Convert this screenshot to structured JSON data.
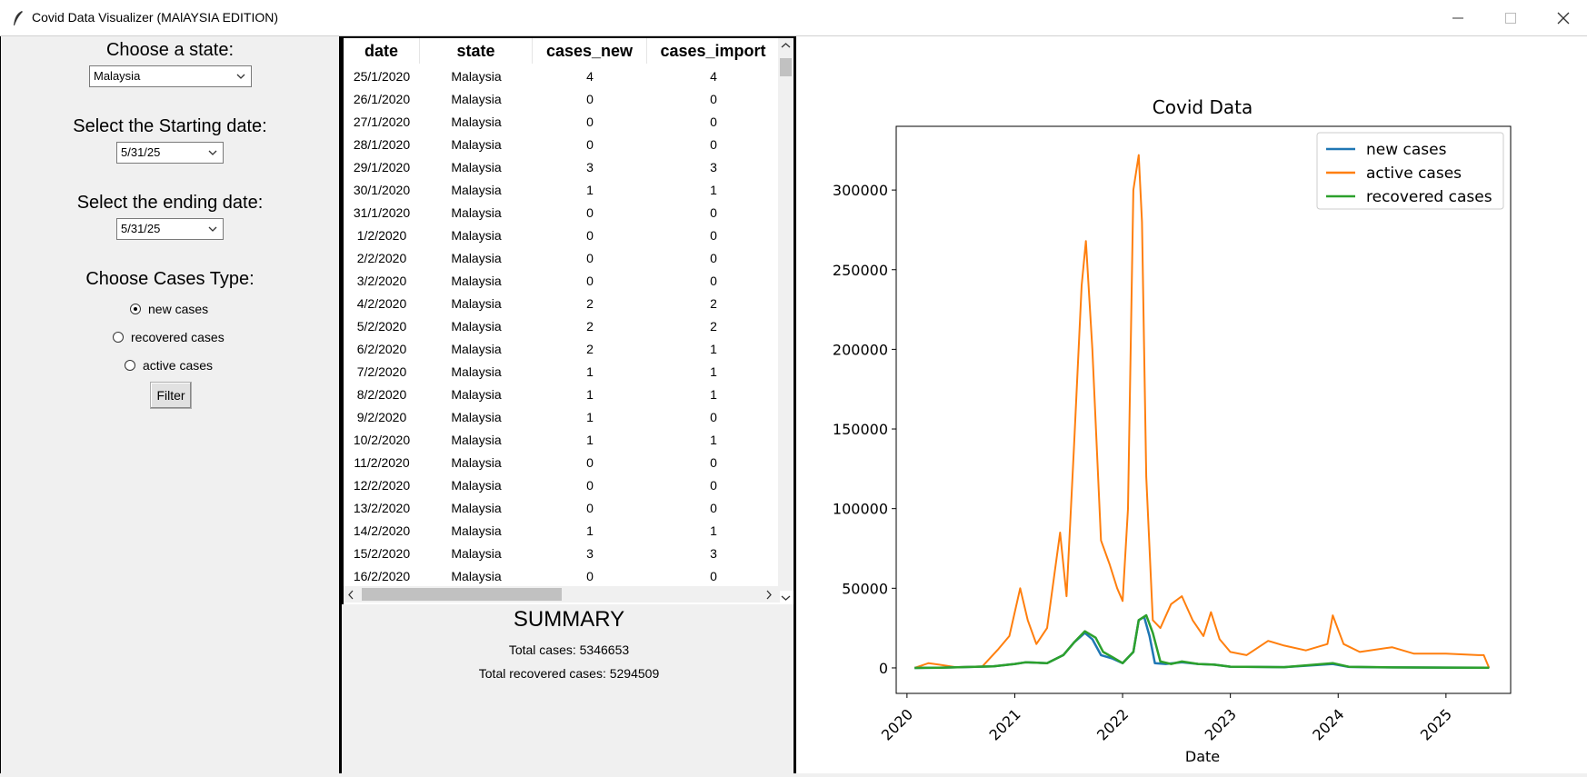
{
  "window": {
    "title": "Covid Data Visualizer (MAlAYSIA EDITION)",
    "app_icon": "feather-icon"
  },
  "controls": {
    "state_label": "Choose a state:",
    "state_value": "Malaysia",
    "start_label": "Select the Starting date:",
    "start_value": "5/31/25",
    "end_label": "Select the ending date:",
    "end_value": "5/31/25",
    "cases_label": "Choose Cases Type:",
    "radios": [
      {
        "label": "new cases",
        "selected": true
      },
      {
        "label": "recovered cases",
        "selected": false
      },
      {
        "label": "active cases",
        "selected": false
      }
    ],
    "filter_label": "Filter"
  },
  "table": {
    "columns": [
      "date",
      "state",
      "cases_new",
      "cases_import"
    ],
    "rows": [
      [
        "25/1/2020",
        "Malaysia",
        "4",
        "4"
      ],
      [
        "26/1/2020",
        "Malaysia",
        "0",
        "0"
      ],
      [
        "27/1/2020",
        "Malaysia",
        "0",
        "0"
      ],
      [
        "28/1/2020",
        "Malaysia",
        "0",
        "0"
      ],
      [
        "29/1/2020",
        "Malaysia",
        "3",
        "3"
      ],
      [
        "30/1/2020",
        "Malaysia",
        "1",
        "1"
      ],
      [
        "31/1/2020",
        "Malaysia",
        "0",
        "0"
      ],
      [
        "1/2/2020",
        "Malaysia",
        "0",
        "0"
      ],
      [
        "2/2/2020",
        "Malaysia",
        "0",
        "0"
      ],
      [
        "3/2/2020",
        "Malaysia",
        "0",
        "0"
      ],
      [
        "4/2/2020",
        "Malaysia",
        "2",
        "2"
      ],
      [
        "5/2/2020",
        "Malaysia",
        "2",
        "2"
      ],
      [
        "6/2/2020",
        "Malaysia",
        "2",
        "1"
      ],
      [
        "7/2/2020",
        "Malaysia",
        "1",
        "1"
      ],
      [
        "8/2/2020",
        "Malaysia",
        "1",
        "1"
      ],
      [
        "9/2/2020",
        "Malaysia",
        "1",
        "0"
      ],
      [
        "10/2/2020",
        "Malaysia",
        "1",
        "1"
      ],
      [
        "11/2/2020",
        "Malaysia",
        "0",
        "0"
      ],
      [
        "12/2/2020",
        "Malaysia",
        "0",
        "0"
      ],
      [
        "13/2/2020",
        "Malaysia",
        "0",
        "0"
      ],
      [
        "14/2/2020",
        "Malaysia",
        "1",
        "1"
      ],
      [
        "15/2/2020",
        "Malaysia",
        "3",
        "3"
      ],
      [
        "16/2/2020",
        "Malaysia",
        "0",
        "0"
      ]
    ]
  },
  "summary": {
    "title": "SUMMARY",
    "total_cases": "Total cases: 5346653",
    "total_recovered": "Total recovered cases: 5294509"
  },
  "colors": {
    "new_cases": "#1f77b4",
    "active_cases": "#ff7f0e",
    "recovered_cases": "#2ca02c"
  },
  "chart_data": {
    "type": "line",
    "title": "Covid Data",
    "xlabel": "Date",
    "ylabel": "",
    "xlim": [
      2019.9,
      2025.6
    ],
    "ylim": [
      -16000,
      340000
    ],
    "xticks": [
      "2020",
      "2021",
      "2022",
      "2023",
      "2024",
      "2025"
    ],
    "yticks": [
      "0",
      "50000",
      "100000",
      "150000",
      "200000",
      "250000",
      "300000"
    ],
    "grid": false,
    "legend": "top-right",
    "series": [
      {
        "name": "new cases",
        "x": [
          2020.07,
          2020.3,
          2020.8,
          2021.0,
          2021.1,
          2021.3,
          2021.45,
          2021.55,
          2021.65,
          2021.72,
          2021.8,
          2021.9,
          2022.0,
          2022.1,
          2022.15,
          2022.2,
          2022.25,
          2022.3,
          2022.4,
          2022.55,
          2022.7,
          2022.85,
          2023.0,
          2023.5,
          2023.95,
          2024.1,
          2024.5,
          2025.0,
          2025.4
        ],
        "y": [
          0,
          100,
          1000,
          2500,
          3500,
          3000,
          8000,
          16000,
          22000,
          18000,
          8000,
          6000,
          3000,
          10000,
          30000,
          32000,
          20000,
          3000,
          2500,
          3500,
          2500,
          2000,
          800,
          500,
          2500,
          600,
          300,
          200,
          100
        ]
      },
      {
        "name": "active cases",
        "x": [
          2020.07,
          2020.2,
          2020.3,
          2020.45,
          2020.7,
          2020.85,
          2020.95,
          2021.05,
          2021.12,
          2021.2,
          2021.3,
          2021.42,
          2021.48,
          2021.55,
          2021.62,
          2021.66,
          2021.72,
          2021.8,
          2021.88,
          2021.95,
          2022.0,
          2022.05,
          2022.1,
          2022.15,
          2022.18,
          2022.22,
          2022.28,
          2022.35,
          2022.45,
          2022.55,
          2022.65,
          2022.75,
          2022.82,
          2022.9,
          2023.0,
          2023.15,
          2023.35,
          2023.5,
          2023.7,
          2023.9,
          2023.95,
          2024.05,
          2024.2,
          2024.5,
          2024.7,
          2025.0,
          2025.3,
          2025.35,
          2025.4
        ],
        "y": [
          0,
          3000,
          2000,
          500,
          1000,
          12000,
          20000,
          50000,
          30000,
          15000,
          25000,
          85000,
          45000,
          140000,
          240000,
          268000,
          200000,
          80000,
          65000,
          50000,
          42000,
          100000,
          300000,
          322000,
          280000,
          120000,
          30000,
          25000,
          40000,
          45000,
          30000,
          20000,
          35000,
          18000,
          10000,
          8000,
          17000,
          14000,
          11000,
          15000,
          33000,
          15000,
          10000,
          13000,
          9000,
          9000,
          8000,
          8000,
          0
        ]
      },
      {
        "name": "recovered cases",
        "x": [
          2020.07,
          2020.3,
          2020.8,
          2021.0,
          2021.1,
          2021.3,
          2021.45,
          2021.55,
          2021.65,
          2021.75,
          2021.82,
          2021.9,
          2022.0,
          2022.1,
          2022.15,
          2022.22,
          2022.28,
          2022.35,
          2022.45,
          2022.55,
          2022.7,
          2022.85,
          2023.0,
          2023.5,
          2023.95,
          2024.1,
          2024.5,
          2025.0,
          2025.4
        ],
        "y": [
          0,
          100,
          1000,
          2500,
          3500,
          3000,
          8000,
          16000,
          23000,
          19000,
          10000,
          7000,
          3000,
          10000,
          30000,
          33000,
          22000,
          4000,
          2500,
          4000,
          2500,
          2000,
          800,
          500,
          3000,
          700,
          300,
          200,
          100
        ]
      }
    ]
  }
}
